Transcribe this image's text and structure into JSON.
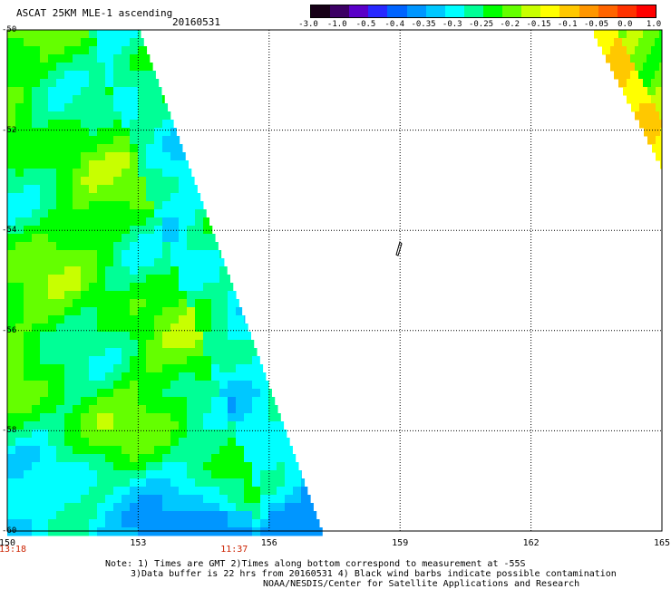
{
  "header": {
    "title": "ASCAT 25KM MLE-1 ascending",
    "date": "20160531"
  },
  "colorbar": {
    "labels": [
      "-3.0",
      "-1.0",
      "-0.5",
      "-0.4",
      "-0.35",
      "-0.3",
      "-0.25",
      "-0.2",
      "-0.15",
      "-0.1",
      "-0.05",
      "0.0",
      "1.0"
    ],
    "colors": [
      "#160016",
      "#3c0064",
      "#5a00c8",
      "#2828ff",
      "#0064ff",
      "#0096ff",
      "#00c8ff",
      "#00ffff",
      "#00ff96",
      "#00ff00",
      "#64ff00",
      "#c8ff00",
      "#ffff00",
      "#ffc800",
      "#ff9600",
      "#ff6400",
      "#ff3200",
      "#ff0000"
    ]
  },
  "map": {
    "lon_ticks": [
      "150",
      "153",
      "156",
      "159",
      "162",
      "165"
    ],
    "lat_ticks": [
      "-50",
      "-52",
      "-54",
      "-56",
      "-58",
      "-60"
    ],
    "lon_range": [
      150,
      165
    ],
    "lat_range": [
      -50,
      -60
    ],
    "times": [
      {
        "lon": 150,
        "label": "13:18"
      },
      {
        "lon": 155.2,
        "label": "11:37"
      }
    ],
    "grid": true
  },
  "notes": {
    "line1": "Note: 1) Times are GMT 2)Times along bottom correspond to measurement at -55S",
    "line2": "3)Data buffer is 22 hrs from 20160531 4) Black wind barbs indicate possible contamination",
    "line3": "NOAA/NESDIS/Center for Satellite Applications and Research"
  }
}
